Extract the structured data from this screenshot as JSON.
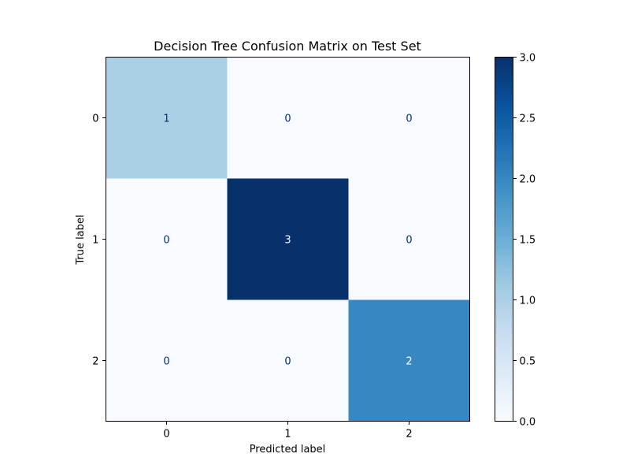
{
  "chart_data": {
    "type": "heatmap",
    "title": "Decision Tree Confusion Matrix on Test Set",
    "xlabel": "Predicted label",
    "ylabel": "True label",
    "x_categories": [
      "0",
      "1",
      "2"
    ],
    "y_categories": [
      "0",
      "1",
      "2"
    ],
    "matrix": [
      [
        1,
        0,
        0
      ],
      [
        0,
        3,
        0
      ],
      [
        0,
        0,
        2
      ]
    ],
    "colormap": "Blues",
    "color_range": [
      0.0,
      3.0
    ],
    "colorbar_ticks": [
      "0.0",
      "0.5",
      "1.0",
      "1.5",
      "2.0",
      "2.5",
      "3.0"
    ],
    "grid": false
  }
}
